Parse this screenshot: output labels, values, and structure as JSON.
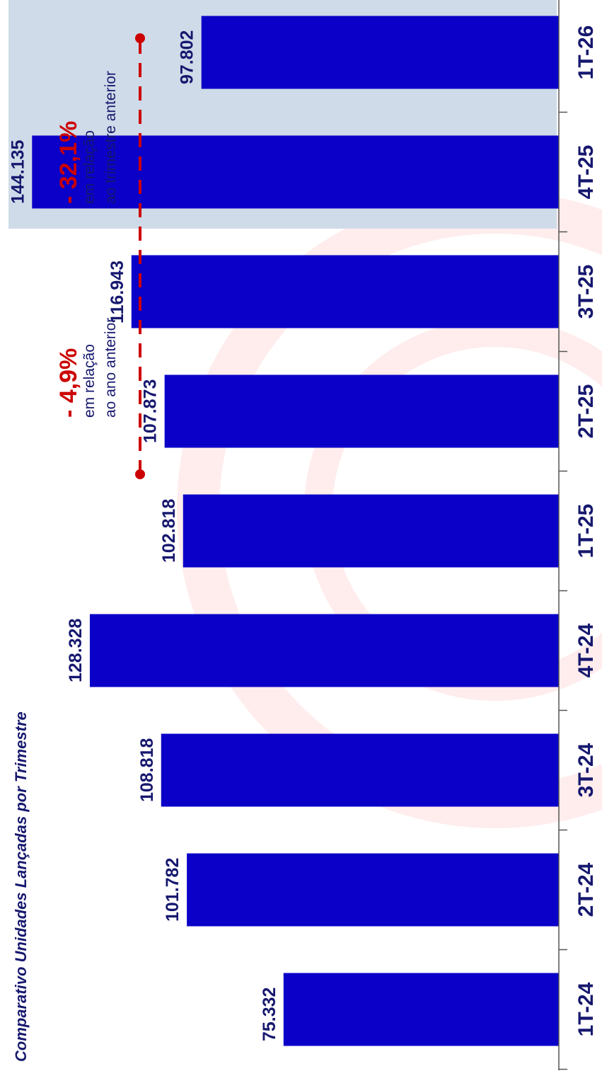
{
  "chart_data": {
    "type": "bar",
    "title": "Comparativo Unidades Lançadas por Trimestre",
    "categories": [
      "1T-24",
      "2T-24",
      "3T-24",
      "4T-24",
      "1T-25",
      "2T-25",
      "3T-25",
      "4T-25",
      "1T-26"
    ],
    "values": [
      75332,
      101782,
      108818,
      128328,
      102818,
      107873,
      116943,
      144135,
      97802
    ],
    "value_labels": [
      "75.332",
      "101.782",
      "108.818",
      "128.328",
      "102.818",
      "107.873",
      "116.943",
      "144.135",
      "97.802"
    ],
    "ylim": [
      0,
      150000
    ],
    "grid": false,
    "bar_color": "#0a00c8",
    "highlight_categories": [
      "4T-25",
      "1T-26"
    ],
    "highlight_color": "#cfdbe8",
    "annotations": [
      {
        "from": "1T-25",
        "to": "1T-26",
        "value": "- 4,9%",
        "line1": "em relação",
        "line2": "ao ano anterior",
        "color": "#cc0000"
      },
      {
        "from": "4T-25",
        "to": "1T-26",
        "value": "- 32,1%",
        "line1": "em relação",
        "line2": "ao trimestre anterior",
        "color": "#cc0000"
      }
    ]
  }
}
